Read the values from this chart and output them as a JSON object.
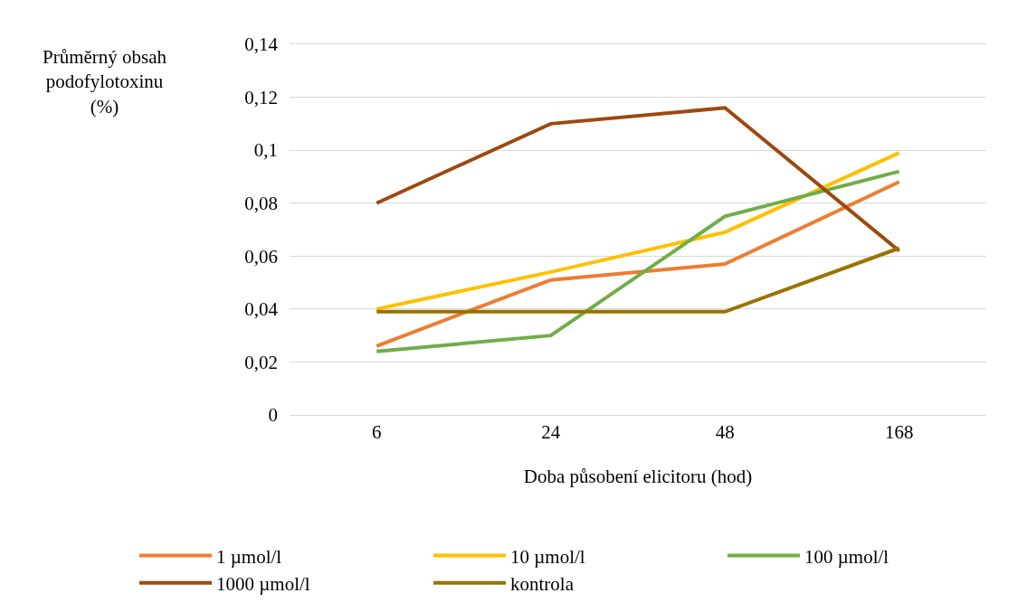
{
  "chart_data": {
    "type": "line",
    "xlabel": "Doba působení elicitoru (hod)",
    "ylabel": "Průměrný obsah\npodofylotoxinu\n(%)",
    "categories": [
      "6",
      "24",
      "48",
      "168"
    ],
    "series": [
      {
        "name": "1 µmol/l",
        "color": "#ed7d31",
        "values": [
          0.026,
          0.051,
          0.057,
          0.088
        ]
      },
      {
        "name": "10 µmol/l",
        "color": "#ffc000",
        "values": [
          0.04,
          0.054,
          0.069,
          0.099
        ]
      },
      {
        "name": "100 µmol/l",
        "color": "#70ad47",
        "values": [
          0.024,
          0.03,
          0.075,
          0.092
        ]
      },
      {
        "name": "1000 µmol/l",
        "color": "#9e480e",
        "values": [
          0.08,
          0.11,
          0.116,
          0.062
        ]
      },
      {
        "name": "kontrola",
        "color": "#997300",
        "values": [
          0.039,
          0.039,
          0.039,
          0.063
        ]
      }
    ],
    "ylim": [
      0,
      0.14
    ],
    "yticks": [
      {
        "value": 0,
        "label": "0"
      },
      {
        "value": 0.02,
        "label": "0,02"
      },
      {
        "value": 0.04,
        "label": "0,04"
      },
      {
        "value": 0.06,
        "label": "0,06"
      },
      {
        "value": 0.08,
        "label": "0,08"
      },
      {
        "value": 0.1,
        "label": "0,1"
      },
      {
        "value": 0.12,
        "label": "0,12"
      },
      {
        "value": 0.14,
        "label": "0,14"
      }
    ],
    "grid": "y",
    "legend": "bottom",
    "marker": "none",
    "line_style": "solid"
  }
}
